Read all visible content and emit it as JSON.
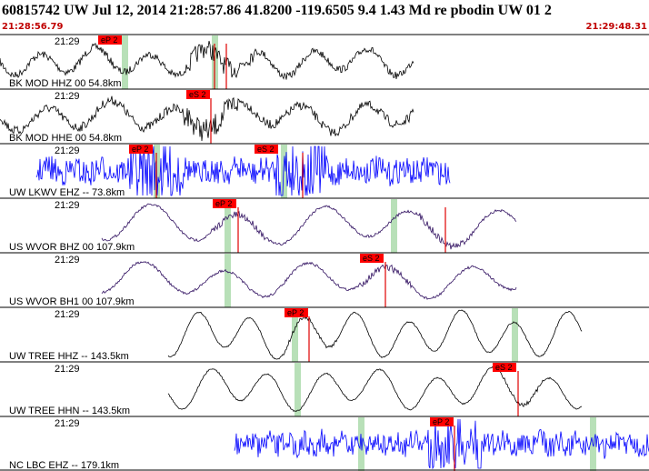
{
  "header": {
    "title": "60815742 UW Jul 12, 2014 21:28:57.86   41.8200 -119.6505  9.4 1.43 Md re pbodin UW 01   2",
    "start_time": "21:28:56.79",
    "end_time": "21:29:48.31"
  },
  "traces": [
    {
      "label": "BK MOD HHZ 00 54.8km",
      "time": "21:29",
      "picks": [
        "eP 2"
      ]
    },
    {
      "label": "BK MOD HHE 00 54.8km",
      "time": "21:29",
      "picks": [
        "eS 2"
      ]
    },
    {
      "label": "UW LKWV EHZ -- 73.8km",
      "time": "21:29",
      "picks": [
        "eP 2",
        "eS 2"
      ]
    },
    {
      "label": "US WVOR BHZ 00 107.9km",
      "time": "21:29",
      "picks": [
        "eP 2"
      ]
    },
    {
      "label": "US WVOR BH1 00 107.9km",
      "time": "21:29",
      "picks": [
        "eS 2"
      ]
    },
    {
      "label": "UW TREE HHZ -- 143.5km",
      "time": "21:29",
      "picks": [
        "eP 2"
      ]
    },
    {
      "label": "UW TREE HHN -- 143.5km",
      "time": "21:29",
      "picks": [
        "eS 2"
      ]
    },
    {
      "label": "NC LBC EHZ -- 179.1km",
      "time": "21:29",
      "picks": [
        "eP 2"
      ]
    }
  ]
}
